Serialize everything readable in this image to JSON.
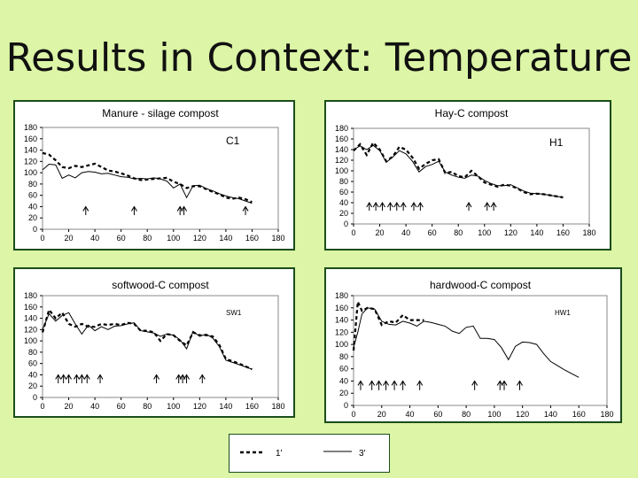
{
  "page_title": "Results in Context: Temperature",
  "legend": {
    "dashed_label": "1'",
    "solid_label": "3'"
  },
  "chart_data": [
    {
      "type": "line",
      "title": "Manure - silage compost",
      "tag": "C1",
      "xlim": [
        0,
        180
      ],
      "ylim": [
        0,
        180
      ],
      "xticks": [
        0,
        20,
        40,
        60,
        80,
        100,
        120,
        140,
        160,
        180
      ],
      "yticks": [
        0,
        20,
        40,
        60,
        80,
        100,
        120,
        140,
        160,
        180
      ],
      "series": [
        {
          "name": "1'",
          "style": "dashed",
          "x": [
            0,
            5,
            10,
            15,
            20,
            25,
            30,
            35,
            40,
            45,
            50,
            55,
            60,
            65,
            70,
            75,
            80,
            85,
            90,
            95,
            100,
            105,
            110,
            115,
            120,
            125,
            130,
            135,
            140,
            145,
            150,
            155,
            160
          ],
          "y": [
            135,
            132,
            122,
            110,
            108,
            112,
            110,
            113,
            116,
            110,
            104,
            102,
            99,
            95,
            90,
            87,
            88,
            89,
            90,
            91,
            84,
            80,
            73,
            76,
            76,
            71,
            66,
            62,
            56,
            54,
            56,
            53,
            48
          ]
        },
        {
          "name": "3'",
          "style": "solid",
          "x": [
            0,
            5,
            10,
            15,
            20,
            25,
            30,
            35,
            40,
            45,
            50,
            55,
            60,
            65,
            70,
            75,
            80,
            85,
            90,
            95,
            100,
            105,
            110,
            115,
            120,
            125,
            130,
            135,
            140,
            145,
            150,
            155,
            160
          ],
          "y": [
            105,
            115,
            114,
            90,
            96,
            91,
            100,
            102,
            101,
            98,
            99,
            96,
            93,
            92,
            89,
            90,
            89,
            91,
            89,
            85,
            73,
            80,
            56,
            77,
            78,
            72,
            68,
            63,
            59,
            56,
            54,
            50,
            46
          ]
        }
      ],
      "arrows_x": [
        33,
        70,
        105,
        108,
        155
      ]
    },
    {
      "type": "line",
      "title": "Hay-C compost",
      "tag": "H1",
      "xlim": [
        0,
        180
      ],
      "ylim": [
        0,
        180
      ],
      "xticks": [
        0,
        20,
        40,
        60,
        80,
        100,
        120,
        140,
        160,
        180
      ],
      "yticks": [
        0,
        20,
        40,
        60,
        80,
        100,
        120,
        140,
        160,
        180
      ],
      "series": [
        {
          "name": "1'",
          "style": "dashed",
          "x": [
            0,
            5,
            10,
            15,
            20,
            25,
            30,
            35,
            40,
            45,
            50,
            55,
            60,
            65,
            70,
            75,
            80,
            85,
            90,
            95,
            100,
            105,
            110,
            115,
            120,
            125,
            130,
            135,
            140,
            145,
            150,
            155,
            160
          ],
          "y": [
            138,
            150,
            130,
            153,
            140,
            118,
            127,
            145,
            140,
            125,
            104,
            113,
            120,
            122,
            96,
            98,
            90,
            88,
            100,
            90,
            78,
            74,
            70,
            74,
            72,
            67,
            60,
            56,
            57,
            56,
            54,
            52,
            50
          ]
        },
        {
          "name": "3'",
          "style": "solid",
          "x": [
            0,
            5,
            10,
            15,
            20,
            25,
            30,
            35,
            40,
            45,
            50,
            55,
            60,
            65,
            70,
            75,
            80,
            85,
            90,
            95,
            100,
            105,
            110,
            115,
            120,
            125,
            130,
            135,
            140,
            145,
            150,
            155,
            160
          ],
          "y": [
            140,
            147,
            140,
            148,
            138,
            116,
            126,
            138,
            132,
            118,
            98,
            108,
            112,
            118,
            98,
            92,
            88,
            86,
            92,
            90,
            82,
            76,
            72,
            72,
            74,
            68,
            62,
            58,
            57,
            56,
            54,
            52,
            50
          ]
        }
      ],
      "arrows_x": [
        12,
        17,
        22,
        28,
        33,
        38,
        46,
        51,
        88,
        102,
        107
      ]
    },
    {
      "type": "line",
      "title": "softwood-C compost",
      "tag": "SW1",
      "xlim": [
        0,
        180
      ],
      "ylim": [
        0,
        180
      ],
      "xticks": [
        0,
        20,
        40,
        60,
        80,
        100,
        120,
        140,
        160,
        180
      ],
      "yticks": [
        0,
        20,
        40,
        60,
        80,
        100,
        120,
        140,
        160,
        180
      ],
      "series": [
        {
          "name": "1'",
          "style": "dashed",
          "x": [
            0,
            5,
            10,
            15,
            20,
            25,
            30,
            35,
            40,
            45,
            50,
            55,
            60,
            65,
            70,
            75,
            80,
            85,
            90,
            95,
            100,
            105,
            110,
            115,
            120,
            125,
            130,
            135,
            140,
            145,
            150,
            155,
            160
          ],
          "y": [
            115,
            155,
            140,
            150,
            130,
            125,
            130,
            125,
            125,
            130,
            128,
            130,
            128,
            132,
            130,
            118,
            118,
            115,
            100,
            112,
            110,
            100,
            92,
            115,
            110,
            110,
            108,
            93,
            68,
            64,
            60,
            55,
            50
          ]
        },
        {
          "name": "3'",
          "style": "solid",
          "x": [
            0,
            5,
            10,
            15,
            20,
            25,
            30,
            35,
            40,
            45,
            50,
            55,
            60,
            65,
            70,
            75,
            80,
            85,
            90,
            95,
            100,
            105,
            110,
            115,
            120,
            125,
            130,
            135,
            140,
            145,
            150,
            155,
            160
          ],
          "y": [
            120,
            148,
            135,
            145,
            150,
            130,
            112,
            128,
            118,
            125,
            120,
            126,
            127,
            130,
            132,
            118,
            116,
            114,
            108,
            112,
            110,
            102,
            86,
            117,
            108,
            112,
            105,
            90,
            66,
            62,
            58,
            54,
            50
          ]
        }
      ],
      "arrows_x": [
        12,
        16,
        20,
        26,
        30,
        34,
        44,
        87,
        104,
        107,
        110,
        122
      ]
    },
    {
      "type": "line",
      "title": "hardwood-C compost",
      "tag": "HW1",
      "xlim": [
        0,
        180
      ],
      "ylim": [
        0,
        180
      ],
      "xticks": [
        0,
        20,
        40,
        60,
        80,
        100,
        120,
        140,
        160,
        180
      ],
      "yticks": [
        0,
        20,
        40,
        60,
        80,
        100,
        120,
        140,
        160,
        180
      ],
      "series": [
        {
          "name": "1'",
          "style": "dashed",
          "x": [
            0,
            3,
            6,
            10,
            15,
            20,
            25,
            30,
            35,
            40,
            45,
            50
          ],
          "y": [
            90,
            170,
            155,
            160,
            158,
            132,
            138,
            136,
            148,
            140,
            140,
            140
          ]
        },
        {
          "name": "3'",
          "style": "solid",
          "x": [
            0,
            3,
            6,
            10,
            15,
            20,
            25,
            30,
            35,
            40,
            45,
            50,
            55,
            60,
            65,
            70,
            75,
            80,
            85,
            90,
            95,
            100,
            105,
            110,
            115,
            120,
            125,
            130,
            135,
            140,
            145,
            150,
            155,
            160
          ],
          "y": [
            95,
            120,
            150,
            160,
            158,
            138,
            133,
            132,
            138,
            135,
            130,
            138,
            136,
            133,
            130,
            122,
            118,
            128,
            130,
            110,
            110,
            108,
            95,
            75,
            97,
            104,
            103,
            100,
            85,
            72,
            65,
            58,
            52,
            46
          ]
        }
      ],
      "arrows_x": [
        5,
        13,
        18,
        23,
        29,
        35,
        47,
        86,
        104,
        107,
        118
      ]
    }
  ]
}
